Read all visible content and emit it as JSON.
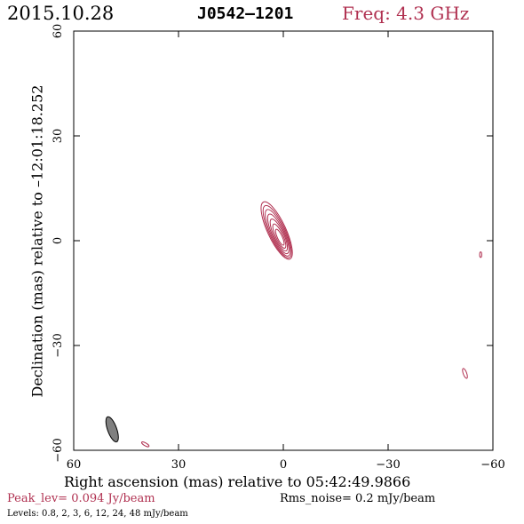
{
  "header": {
    "date": "2015.10.28",
    "source": "J0542–1201",
    "frequency": "Freq: 4.3 GHz"
  },
  "footer": {
    "peak": "Peak_lev=  0.094 Jy/beam",
    "rms": "Rms_noise=  0.2 mJy/beam",
    "levels": "Levels: 0.8,   2,   3,   6,  12,  24,  48 mJy/beam"
  },
  "colors": {
    "contour": "#b03050",
    "beam_fill": "#808080",
    "frame": "#000000"
  },
  "chart_data": {
    "type": "contour",
    "xlabel": "Right ascension (mas) relative to 05:42:49.9866",
    "ylabel": "Declination (mas) relative to –12:01:18.252",
    "xlim": [
      60,
      -60
    ],
    "ylim": [
      -60,
      60
    ],
    "x_ticks": [
      60,
      30,
      0,
      -30,
      -60
    ],
    "y_ticks": [
      60,
      30,
      0,
      -30,
      -60
    ],
    "x_tick_labels": [
      "60",
      "30",
      "0",
      "−30",
      "−60"
    ],
    "y_tick_labels": [
      "60",
      "30",
      "0",
      "−30",
      "−60"
    ],
    "contour_levels_mJy": [
      0.8,
      2,
      3,
      6,
      12,
      24,
      48
    ],
    "main_component": {
      "center": [
        1,
        1
      ],
      "position_angle_deg": 25,
      "contours": [
        {
          "level": 0.8,
          "semi_major": 9.0,
          "semi_minor": 2.6
        },
        {
          "level": 2,
          "semi_major": 8.2,
          "semi_minor": 2.3
        },
        {
          "level": 3,
          "semi_major": 7.3,
          "semi_minor": 2.0
        },
        {
          "level": 6,
          "semi_major": 6.2,
          "semi_minor": 1.7
        },
        {
          "level": 12,
          "semi_major": 5.0,
          "semi_minor": 1.4
        },
        {
          "level": 24,
          "semi_major": 3.8,
          "semi_minor": 1.05
        },
        {
          "level": 48,
          "semi_major": 2.5,
          "semi_minor": 0.7
        }
      ]
    },
    "minor_features": [
      {
        "center": [
          -56.5,
          -4
        ],
        "semi_major": 0.8,
        "semi_minor": 0.3,
        "position_angle_deg": 0
      },
      {
        "center": [
          -52,
          -38
        ],
        "semi_major": 1.5,
        "semi_minor": 0.5,
        "position_angle_deg": 20
      },
      {
        "center": [
          39.5,
          -58.3
        ],
        "semi_major": 1.2,
        "semi_minor": 0.4,
        "position_angle_deg": 60
      }
    ],
    "beam": {
      "center": [
        49,
        -54
      ],
      "semi_major": 3.8,
      "semi_minor": 1.3,
      "position_angle_deg": 20
    }
  }
}
